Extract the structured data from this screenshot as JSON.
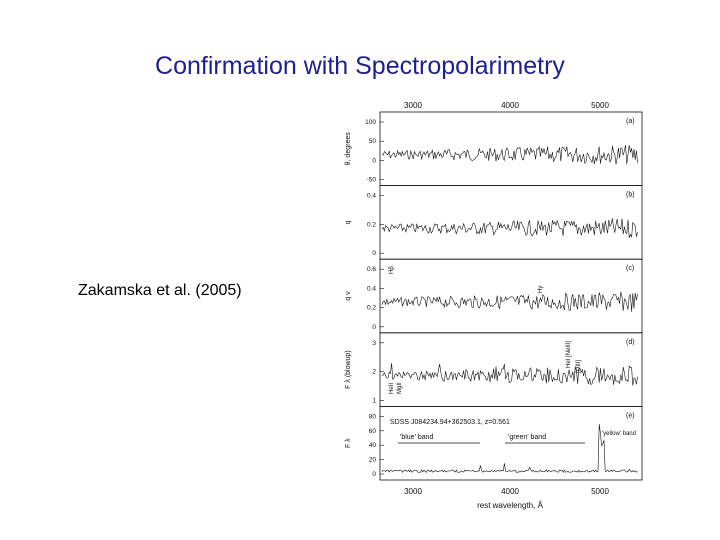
{
  "slide": {
    "title": "Confirmation with Spectropolarimetry",
    "citation": "Zakamska et al. (2005)"
  },
  "figure": {
    "top_axis_ticks": [
      "3000",
      "4000",
      "5000"
    ],
    "xlabel": "rest wavelength, Å",
    "object_label": "SDSS J084234.94+362503.1, z=0.561",
    "band_labels": [
      "'blue' band",
      "'green' band",
      "'yellow' band"
    ],
    "panels": [
      {
        "tag": "(a)",
        "ylabel": "θ, degrees",
        "ticks": [
          "100",
          "50",
          "0",
          "-50"
        ]
      },
      {
        "tag": "(b)",
        "ylabel": "q",
        "ticks": [
          "0.4",
          "0.2",
          "0"
        ]
      },
      {
        "tag": "(c)",
        "ylabel": "q ν",
        "ticks": [
          "0.6",
          "0.4",
          "0.2",
          "0"
        ]
      },
      {
        "tag": "(d)",
        "ylabel": "F λ (blowup)",
        "ticks": [
          "3",
          "2",
          "1"
        ]
      },
      {
        "tag": "(e)",
        "ylabel": "F λ",
        "ticks": [
          "80",
          "60",
          "40",
          "20",
          "0"
        ]
      }
    ],
    "line_labels": {
      "hbeta": "Hβ",
      "hgamma": "Hγ",
      "mgii": "MgII",
      "heii": "HeII",
      "oiii": "[OIII]",
      "hei_neiii": "HeI [NeIII]"
    },
    "colors": {
      "title": "#1f1f8f",
      "ink": "#111111"
    }
  }
}
